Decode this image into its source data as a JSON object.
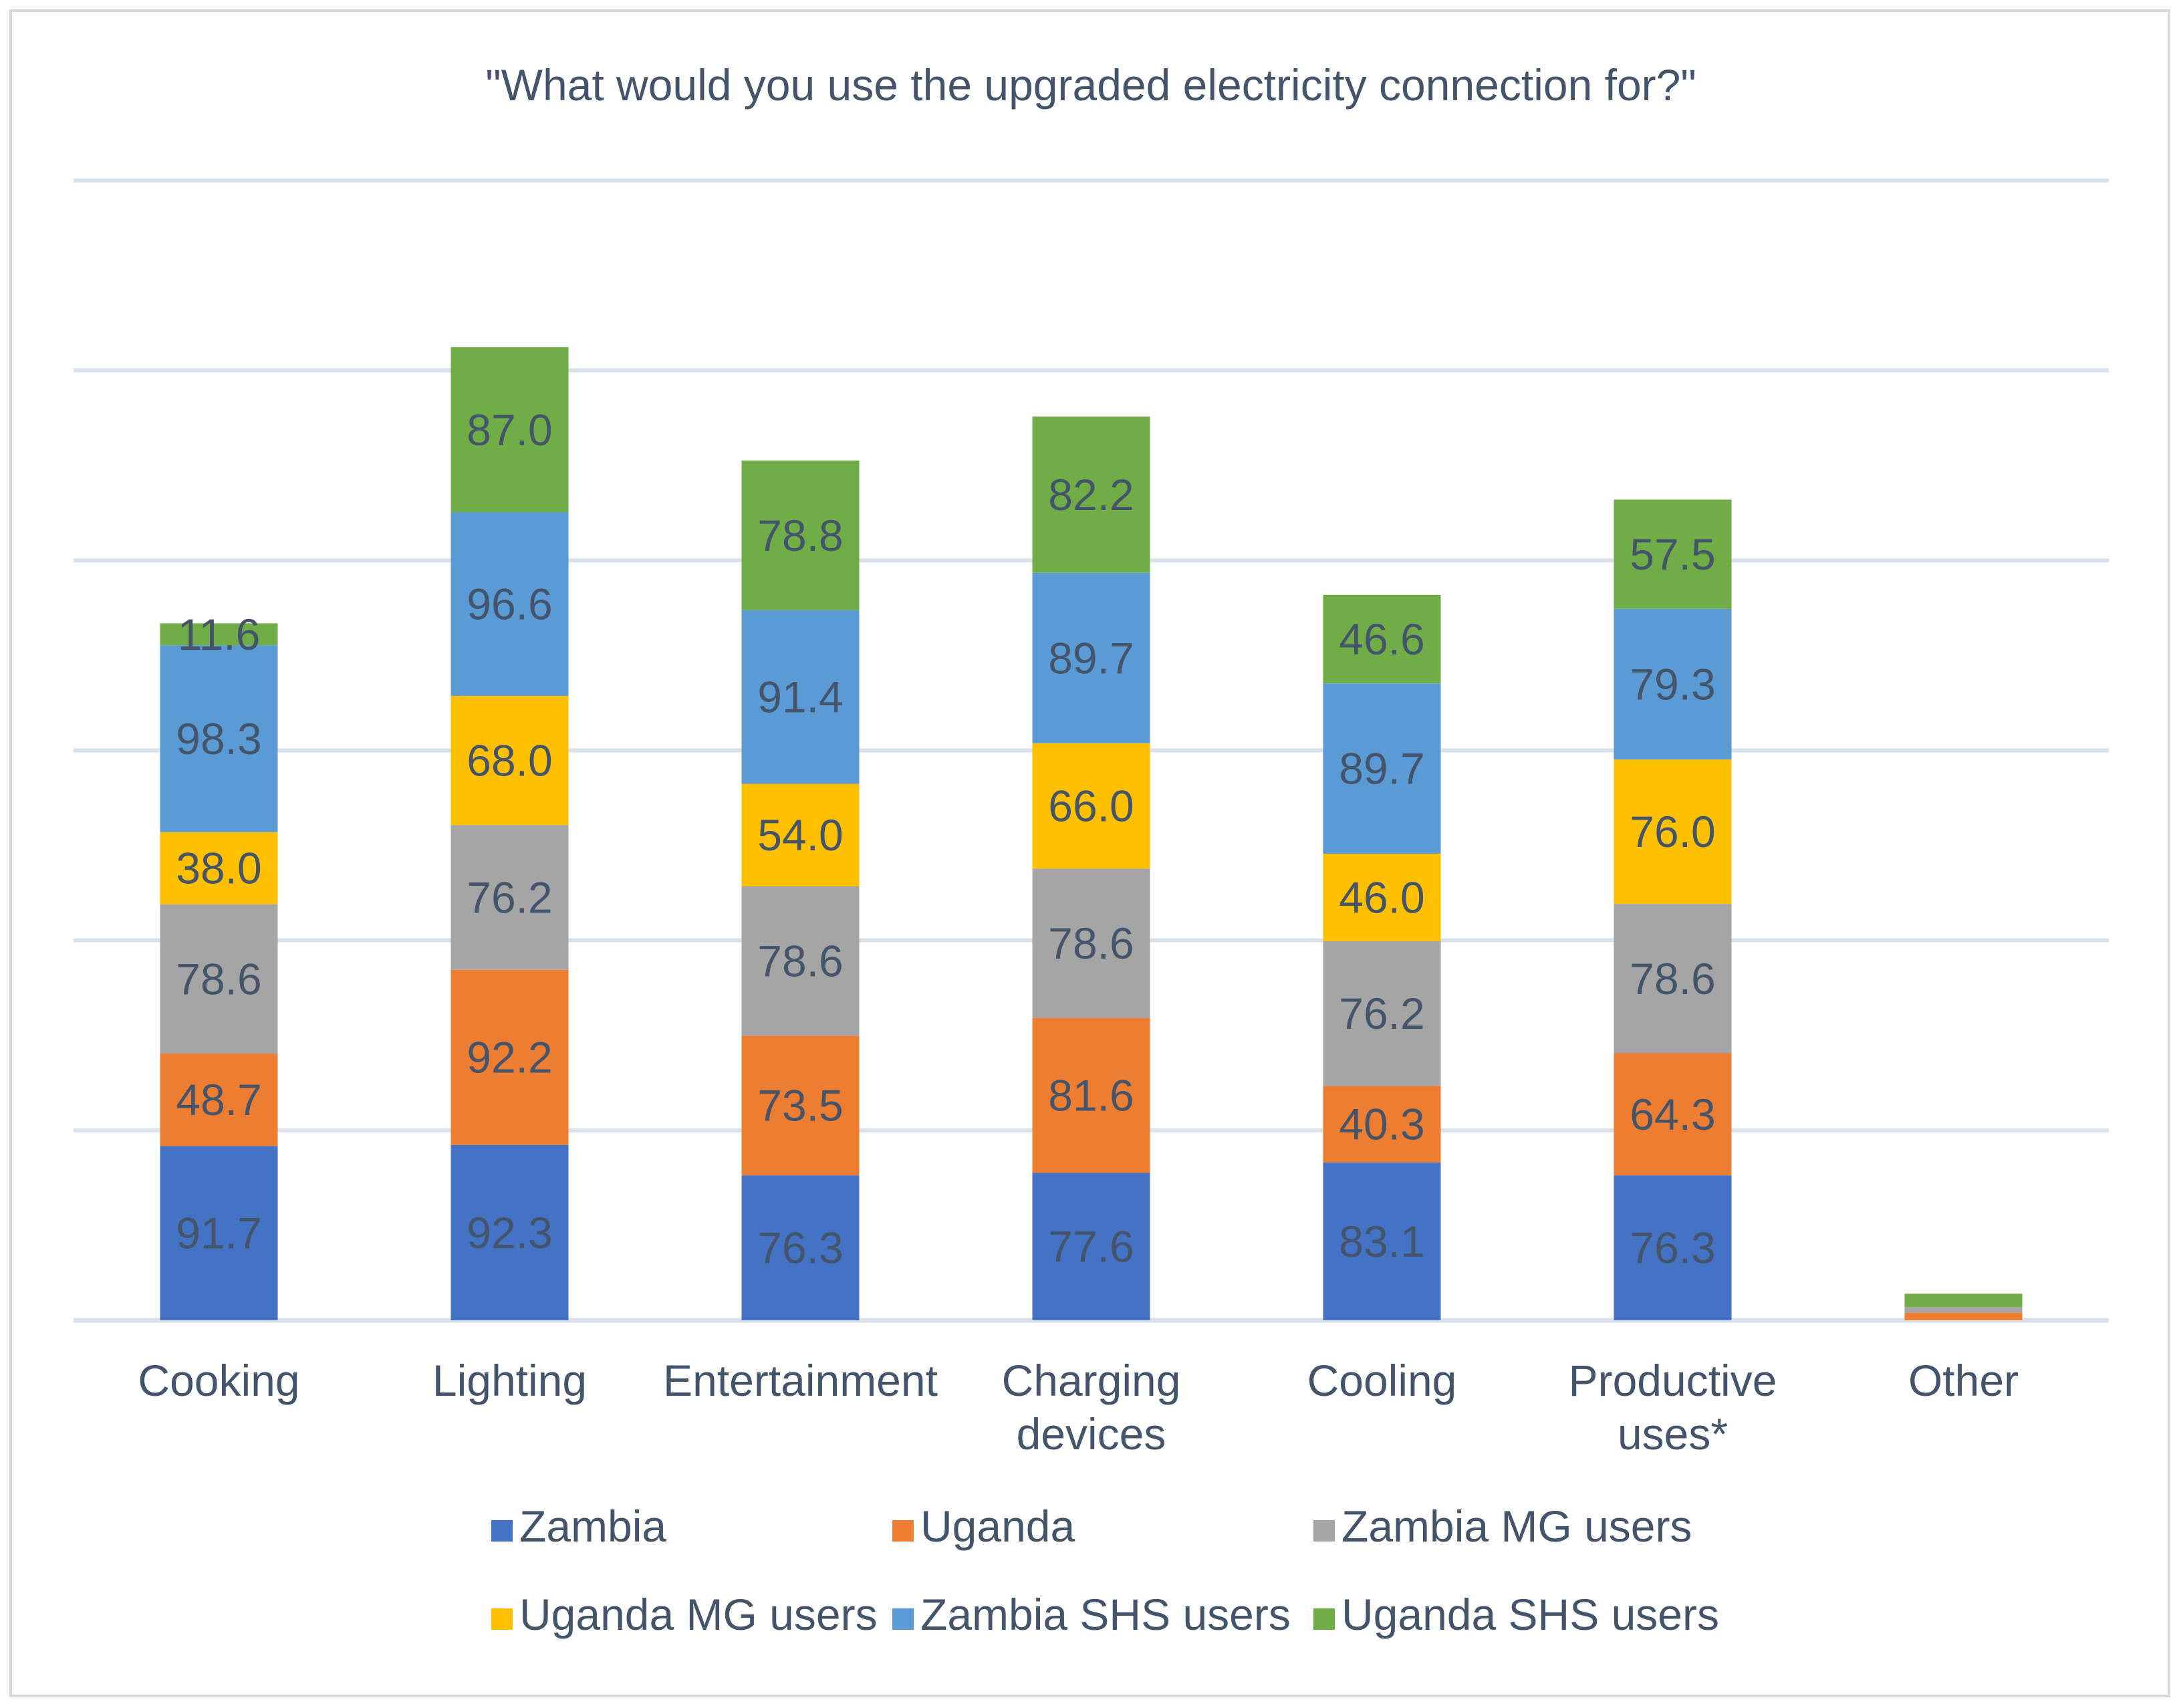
{
  "chart_data": {
    "type": "bar",
    "stacked": true,
    "title": "\"What would you use the upgraded electricity connection for?\"",
    "xlabel": "",
    "ylabel": "",
    "ylim": [
      0,
      600
    ],
    "grid": true,
    "legend_position": "bottom",
    "categories": [
      [
        "Cooking"
      ],
      [
        "Lighting"
      ],
      [
        "Entertainment"
      ],
      [
        "Charging",
        "devices"
      ],
      [
        "Cooling"
      ],
      [
        "Productive",
        "uses*"
      ],
      [
        "Other"
      ]
    ],
    "series": [
      {
        "name": "Zambia",
        "color": "#4472c4",
        "values": [
          91.7,
          92.3,
          76.3,
          77.6,
          83.1,
          76.3,
          0
        ]
      },
      {
        "name": "Uganda",
        "color": "#ed7d31",
        "values": [
          48.7,
          92.2,
          73.5,
          81.6,
          40.3,
          64.3,
          4
        ]
      },
      {
        "name": "Zambia MG users",
        "color": "#a5a5a5",
        "values": [
          78.6,
          76.2,
          78.6,
          78.6,
          76.2,
          78.6,
          3
        ]
      },
      {
        "name": "Uganda MG users",
        "color": "#ffc000",
        "values": [
          38.0,
          68.0,
          54.0,
          66.0,
          46.0,
          76.0,
          0
        ]
      },
      {
        "name": "Zambia SHS users",
        "color": "#5b9bd5",
        "values": [
          98.3,
          96.6,
          91.4,
          89.7,
          89.7,
          79.3,
          0
        ]
      },
      {
        "name": "Uganda SHS users",
        "color": "#70ad47",
        "values": [
          11.6,
          87.0,
          78.8,
          82.2,
          46.6,
          57.5,
          7
        ]
      }
    ],
    "data_labels": [
      [
        "91.7",
        "92.3",
        "76.3",
        "77.6",
        "83.1",
        "76.3",
        ""
      ],
      [
        "48.7",
        "92.2",
        "73.5",
        "81.6",
        "40.3",
        "64.3",
        ""
      ],
      [
        "78.6",
        "76.2",
        "78.6",
        "78.6",
        "76.2",
        "78.6",
        ""
      ],
      [
        "38.0",
        "68.0",
        "54.0",
        "66.0",
        "46.0",
        "76.0",
        ""
      ],
      [
        "98.3",
        "96.6",
        "91.4",
        "89.7",
        "89.7",
        "79.3",
        ""
      ],
      [
        "11.6",
        "87.0",
        "78.8",
        "82.2",
        "46.6",
        "57.5",
        ""
      ]
    ]
  }
}
